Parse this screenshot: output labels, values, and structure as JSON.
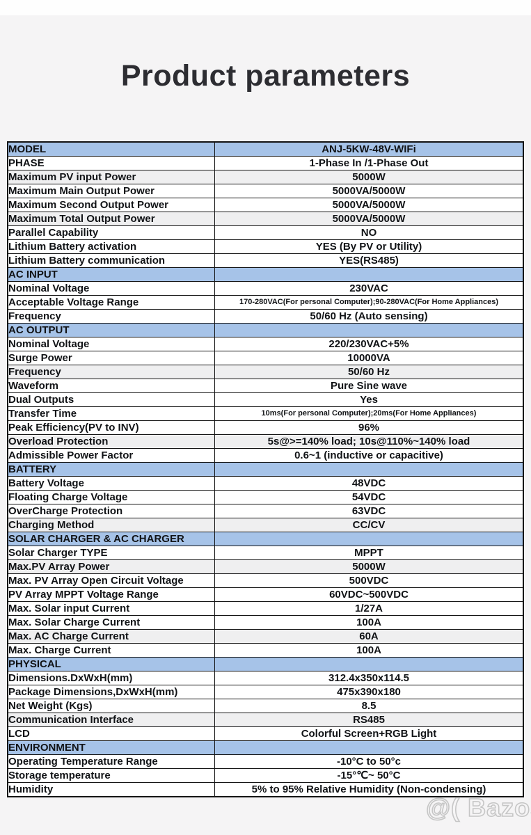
{
  "page": {
    "title": "Product parameters"
  },
  "watermark": {
    "text": "@( Bazos.sk"
  },
  "colors": {
    "section_header_bg": "#a6c3e8",
    "shaded_row_bg": "#efeff0",
    "page_bg": "#f5f4f5",
    "table_border": "#141414",
    "text": "#111316"
  },
  "table": {
    "rows": [
      {
        "label": "MODEL",
        "value": "ANJ-5KW-48V-WIFi",
        "section": true
      },
      {
        "label": "PHASE",
        "value": "1-Phase In /1-Phase Out"
      },
      {
        "label": "Maximum PV input Power",
        "value": "5000W",
        "shaded": true
      },
      {
        "label": "Maximum Main Output Power",
        "value": "5000VA/5000W"
      },
      {
        "label": "Maximum Second Output Power",
        "value": "5000VA/5000W"
      },
      {
        "label": "Maximum Total Output Power",
        "value": "5000VA/5000W",
        "shaded": true
      },
      {
        "label": "Parallel Capability",
        "value": "NO"
      },
      {
        "label": "Lithium Battery activation",
        "value": "YES (By PV or Utility)"
      },
      {
        "label": "Lithium Battery communication",
        "value": "YES(RS485)"
      },
      {
        "label": "AC INPUT",
        "value": "",
        "section": true
      },
      {
        "label": "Nominal Voltage",
        "value": "230VAC"
      },
      {
        "label": "Acceptable Voltage Range",
        "value": "170-280VAC(For personal Computer);90-280VAC(For Home Appliances)",
        "small": true
      },
      {
        "label": "Frequency",
        "value": "50/60 Hz (Auto sensing)"
      },
      {
        "label": "AC OUTPUT",
        "value": "",
        "section": true
      },
      {
        "label": "Nominal Voltage",
        "value": "220/230VAC+5%"
      },
      {
        "label": "Surge Power",
        "value": "10000VA"
      },
      {
        "label": "Frequency",
        "value": "50/60 Hz",
        "shaded": true
      },
      {
        "label": "Waveform",
        "value": "Pure Sine wave"
      },
      {
        "label": "Dual Outputs",
        "value": "Yes"
      },
      {
        "label": "Transfer Time",
        "value": "10ms(For personal Computer);20ms(For Home Appliances)",
        "small": true
      },
      {
        "label": "Peak Efficiency(PV to INV)",
        "value": "96%"
      },
      {
        "label": "Overload Protection",
        "value": "5s@>=140% load; 10s@110%~140% load",
        "shaded": true
      },
      {
        "label": "Admissible Power Factor",
        "value": "0.6~1 (inductive or capacitive)"
      },
      {
        "label": "BATTERY",
        "value": "",
        "section": true
      },
      {
        "label": "Battery Voltage",
        "value": "48VDC"
      },
      {
        "label": "Floating Charge Voltage",
        "value": "54VDC"
      },
      {
        "label": "OverCharge Protection",
        "value": "63VDC"
      },
      {
        "label": "Charging Method",
        "value": "CC/CV",
        "shaded": true
      },
      {
        "label": "SOLAR CHARGER & AC CHARGER",
        "value": "",
        "section": true
      },
      {
        "label": "Solar Charger TYPE",
        "value": "MPPT"
      },
      {
        "label": "Max.PV Array Power",
        "value": "5000W",
        "shaded": true
      },
      {
        "label": "Max. PV Array Open Circuit Voltage",
        "value": "500VDC"
      },
      {
        "label": "PV Array MPPT Voltage Range",
        "value": "60VDC~500VDC"
      },
      {
        "label": "Max. Solar input Current",
        "value": "1/27A"
      },
      {
        "label": "Max. Solar Charge Current",
        "value": "100A"
      },
      {
        "label": "Max. AC Charge Current",
        "value": "60A",
        "shaded": true
      },
      {
        "label": "Max. Charge Current",
        "value": "100A"
      },
      {
        "label": "PHYSICAL",
        "value": "",
        "section": true
      },
      {
        "label": "Dimensions.DxWxH(mm)",
        "value": "312.4x350x114.5"
      },
      {
        "label": "Package Dimensions,DxWxH(mm)",
        "value": "475x390x180"
      },
      {
        "label": "Net Weight (Kgs)",
        "value": "8.5"
      },
      {
        "label": "Communication Interface",
        "value": "RS485",
        "shaded": true
      },
      {
        "label": "LCD",
        "value": "Colorful Screen+RGB Light"
      },
      {
        "label": "ENVIRONMENT",
        "value": "",
        "section": true
      },
      {
        "label": "Operating Temperature Range",
        "value": "-10°C to 50°c"
      },
      {
        "label": "Storage temperature",
        "value": "-15°℃~ 50°C"
      },
      {
        "label": "Humidity",
        "value": "5% to 95% Relative Humidity (Non-condensing)"
      }
    ]
  }
}
